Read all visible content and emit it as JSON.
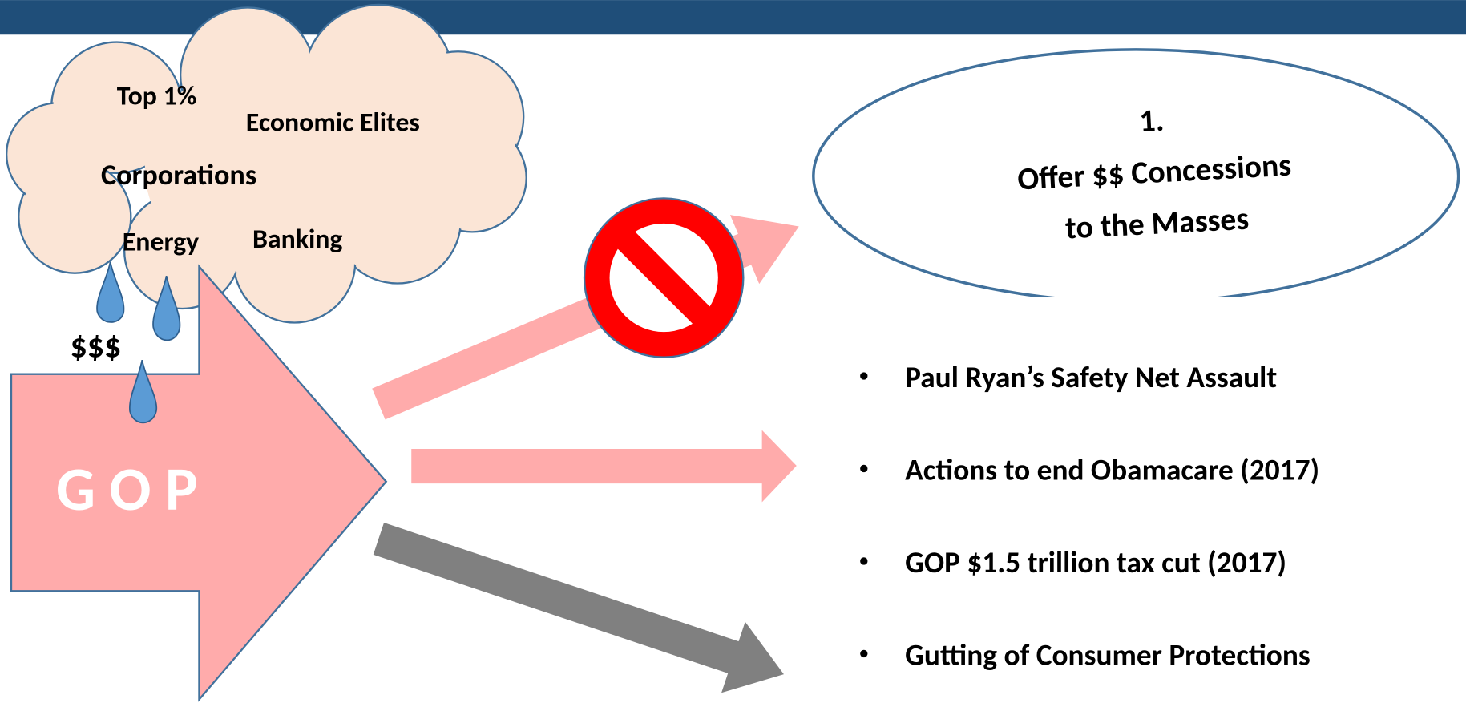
{
  "cloud": {
    "labels": [
      "Top 1%",
      "Economic Elites",
      "Corporations",
      "Energy",
      "Banking"
    ],
    "money": "$$$"
  },
  "gop": "G O P",
  "callout": {
    "number": "1.",
    "lines": [
      "Offer $$ Concessions",
      "to the Masses"
    ]
  },
  "bullets": [
    "Paul Ryan’s Safety Net Assault",
    "Actions to end Obamacare (2017)",
    "GOP  $1.5 trillion tax cut (2017)",
    "Gutting of Consumer Protections"
  ]
}
